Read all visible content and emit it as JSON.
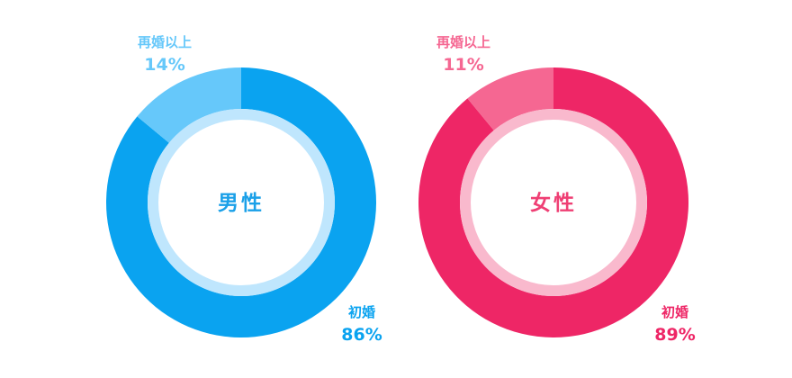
{
  "chart_data": [
    {
      "type": "pie",
      "title": "男性",
      "slices": [
        {
          "label": "再婚以上",
          "value": 14,
          "display": "14%",
          "color": "#66c8fa"
        },
        {
          "label": "初婚",
          "value": 86,
          "display": "86%",
          "color": "#0aa3f0"
        }
      ],
      "inner_ring_color": "#bfe6fd",
      "title_color": "#1aa0e8"
    },
    {
      "type": "pie",
      "title": "女性",
      "slices": [
        {
          "label": "再婚以上",
          "value": 11,
          "display": "11%",
          "color": "#f56792"
        },
        {
          "label": "初婚",
          "value": 89,
          "display": "89%",
          "color": "#ee2666"
        }
      ],
      "inner_ring_color": "#f9b9cd",
      "title_color": "#ef3f74"
    }
  ]
}
